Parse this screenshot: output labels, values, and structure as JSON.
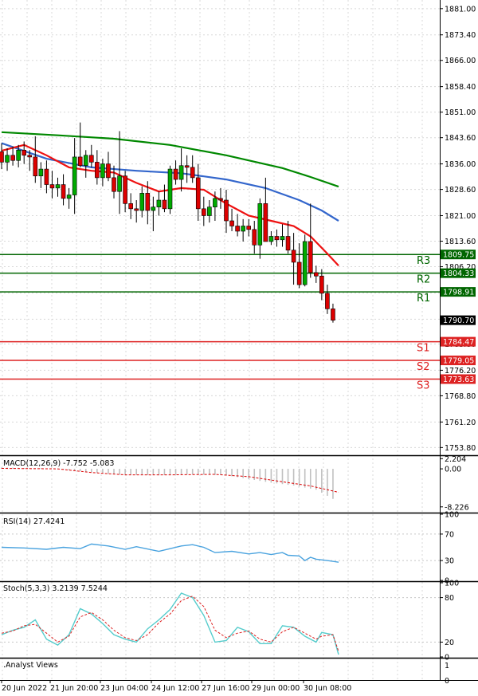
{
  "chart_data": [
    {
      "type": "candlestick",
      "name_on_chart": "",
      "y_ticks": [
        1881.0,
        1873.4,
        1866.0,
        1858.4,
        1851.0,
        1843.6,
        1836.0,
        1828.6,
        1821.0,
        1813.6,
        1806.2,
        1798.6,
        1791.0,
        1783.8,
        1776.2,
        1768.8,
        1761.2,
        1753.8
      ],
      "y_range": [
        1751.8,
        1883.5
      ],
      "x_labels": [
        "20 Jun 2022",
        "21 Jun 20:00",
        "23 Jun 04:00",
        "24 Jun 12:00",
        "27 Jun 16:00",
        "29 Jun 00:00",
        "30 Jun 08:00"
      ],
      "current_price": "1790.70",
      "colors": {
        "up": "#00aa00",
        "down": "#dd0000",
        "ma_slow": "#008800",
        "ma_mid": "#3366cc",
        "ma_fast": "#ee1111",
        "resistance": "#006600",
        "support": "#dd2222"
      },
      "candles": [
        {
          "o": 1839.5,
          "h": 1842.0,
          "l": 1834.5,
          "c": 1836.5
        },
        {
          "o": 1836.5,
          "h": 1840.5,
          "l": 1834.0,
          "c": 1838.5
        },
        {
          "o": 1838.5,
          "h": 1841.0,
          "l": 1835.5,
          "c": 1837.0
        },
        {
          "o": 1837.0,
          "h": 1841.5,
          "l": 1835.0,
          "c": 1840.0
        },
        {
          "o": 1840.0,
          "h": 1842.5,
          "l": 1836.0,
          "c": 1838.5
        },
        {
          "o": 1838.5,
          "h": 1840.0,
          "l": 1834.0,
          "c": 1838.0
        },
        {
          "o": 1838.0,
          "h": 1844.0,
          "l": 1830.5,
          "c": 1832.5
        },
        {
          "o": 1832.5,
          "h": 1836.5,
          "l": 1829.0,
          "c": 1834.5
        },
        {
          "o": 1834.5,
          "h": 1837.0,
          "l": 1827.5,
          "c": 1830.0
        },
        {
          "o": 1830.0,
          "h": 1834.0,
          "l": 1826.0,
          "c": 1829.0
        },
        {
          "o": 1829.0,
          "h": 1832.0,
          "l": 1826.5,
          "c": 1830.0
        },
        {
          "o": 1830.0,
          "h": 1833.0,
          "l": 1824.0,
          "c": 1826.0
        },
        {
          "o": 1826.0,
          "h": 1829.0,
          "l": 1823.0,
          "c": 1827.0
        },
        {
          "o": 1827.0,
          "h": 1843.5,
          "l": 1821.5,
          "c": 1838.0
        },
        {
          "o": 1838.0,
          "h": 1848.0,
          "l": 1835.0,
          "c": 1835.5
        },
        {
          "o": 1835.5,
          "h": 1840.0,
          "l": 1832.0,
          "c": 1838.5
        },
        {
          "o": 1838.5,
          "h": 1841.5,
          "l": 1835.0,
          "c": 1836.5
        },
        {
          "o": 1836.5,
          "h": 1840.0,
          "l": 1830.0,
          "c": 1832.0
        },
        {
          "o": 1832.0,
          "h": 1837.5,
          "l": 1829.5,
          "c": 1836.0
        },
        {
          "o": 1836.0,
          "h": 1839.5,
          "l": 1831.0,
          "c": 1832.0
        },
        {
          "o": 1832.0,
          "h": 1835.5,
          "l": 1826.0,
          "c": 1828.0
        },
        {
          "o": 1828.0,
          "h": 1845.5,
          "l": 1821.5,
          "c": 1832.5
        },
        {
          "o": 1832.5,
          "h": 1834.0,
          "l": 1822.0,
          "c": 1824.5
        },
        {
          "o": 1824.5,
          "h": 1827.5,
          "l": 1820.0,
          "c": 1823.0
        },
        {
          "o": 1823.0,
          "h": 1825.5,
          "l": 1819.0,
          "c": 1822.5
        },
        {
          "o": 1822.5,
          "h": 1829.5,
          "l": 1820.5,
          "c": 1827.5
        },
        {
          "o": 1827.5,
          "h": 1831.0,
          "l": 1818.5,
          "c": 1822.5
        },
        {
          "o": 1822.5,
          "h": 1826.5,
          "l": 1816.5,
          "c": 1823.5
        },
        {
          "o": 1823.5,
          "h": 1828.0,
          "l": 1821.0,
          "c": 1825.5
        },
        {
          "o": 1825.5,
          "h": 1830.0,
          "l": 1822.0,
          "c": 1823.0
        },
        {
          "o": 1823.0,
          "h": 1835.5,
          "l": 1821.5,
          "c": 1834.5
        },
        {
          "o": 1834.5,
          "h": 1837.0,
          "l": 1830.0,
          "c": 1831.5
        },
        {
          "o": 1831.5,
          "h": 1840.5,
          "l": 1828.0,
          "c": 1835.5
        },
        {
          "o": 1835.5,
          "h": 1838.5,
          "l": 1830.5,
          "c": 1835.0
        },
        {
          "o": 1835.0,
          "h": 1838.5,
          "l": 1830.5,
          "c": 1832.0
        },
        {
          "o": 1832.0,
          "h": 1836.0,
          "l": 1819.5,
          "c": 1823.0
        },
        {
          "o": 1823.0,
          "h": 1826.5,
          "l": 1818.0,
          "c": 1821.0
        },
        {
          "o": 1821.0,
          "h": 1825.5,
          "l": 1819.0,
          "c": 1823.5
        },
        {
          "o": 1823.5,
          "h": 1828.0,
          "l": 1819.5,
          "c": 1826.0
        },
        {
          "o": 1826.0,
          "h": 1829.0,
          "l": 1823.0,
          "c": 1825.5
        },
        {
          "o": 1825.5,
          "h": 1828.5,
          "l": 1816.0,
          "c": 1819.5
        },
        {
          "o": 1819.5,
          "h": 1823.0,
          "l": 1816.5,
          "c": 1818.0
        },
        {
          "o": 1818.0,
          "h": 1821.5,
          "l": 1815.0,
          "c": 1816.5
        },
        {
          "o": 1816.5,
          "h": 1820.0,
          "l": 1813.5,
          "c": 1818.0
        },
        {
          "o": 1818.0,
          "h": 1820.0,
          "l": 1815.0,
          "c": 1817.0
        },
        {
          "o": 1817.0,
          "h": 1819.5,
          "l": 1810.0,
          "c": 1812.5
        },
        {
          "o": 1812.5,
          "h": 1826.0,
          "l": 1808.5,
          "c": 1824.5
        },
        {
          "o": 1824.5,
          "h": 1832.0,
          "l": 1814.0,
          "c": 1813.5
        },
        {
          "o": 1813.5,
          "h": 1816.5,
          "l": 1812.5,
          "c": 1815.0
        },
        {
          "o": 1815.0,
          "h": 1817.0,
          "l": 1812.0,
          "c": 1814.0
        },
        {
          "o": 1814.0,
          "h": 1818.5,
          "l": 1812.0,
          "c": 1815.0
        },
        {
          "o": 1815.0,
          "h": 1819.5,
          "l": 1810.0,
          "c": 1811.0
        },
        {
          "o": 1811.0,
          "h": 1816.0,
          "l": 1801.0,
          "c": 1807.5
        },
        {
          "o": 1807.5,
          "h": 1813.0,
          "l": 1800.0,
          "c": 1801.0
        },
        {
          "o": 1801.0,
          "h": 1815.5,
          "l": 1800.5,
          "c": 1813.5
        },
        {
          "o": 1813.5,
          "h": 1824.5,
          "l": 1803.0,
          "c": 1804.5
        },
        {
          "o": 1804.5,
          "h": 1806.5,
          "l": 1801.5,
          "c": 1803.5
        },
        {
          "o": 1803.5,
          "h": 1805.5,
          "l": 1796.5,
          "c": 1798.5
        },
        {
          "o": 1798.5,
          "h": 1801.0,
          "l": 1792.5,
          "c": 1794.0
        },
        {
          "o": 1794.0,
          "h": 1795.5,
          "l": 1790.0,
          "c": 1790.7
        }
      ],
      "ma_slow": [
        [
          0,
          1845.2
        ],
        [
          10,
          1844.3
        ],
        [
          20,
          1843.3
        ],
        [
          30,
          1841.5
        ],
        [
          40,
          1838.5
        ],
        [
          50,
          1834.8
        ],
        [
          55,
          1832.2
        ],
        [
          60,
          1829.4
        ]
      ],
      "ma_mid": [
        [
          0,
          1842.0
        ],
        [
          8,
          1837.5
        ],
        [
          16,
          1835.0
        ],
        [
          24,
          1834.0
        ],
        [
          32,
          1833.3
        ],
        [
          40,
          1831.5
        ],
        [
          47,
          1829.0
        ],
        [
          53,
          1825.5
        ],
        [
          57,
          1822.5
        ],
        [
          60,
          1819.5
        ]
      ],
      "ma_fast": [
        [
          0,
          1839.8
        ],
        [
          4,
          1841.5
        ],
        [
          8,
          1838.5
        ],
        [
          12,
          1835.0
        ],
        [
          16,
          1834.0
        ],
        [
          20,
          1833.5
        ],
        [
          24,
          1830.5
        ],
        [
          28,
          1828.0
        ],
        [
          32,
          1829.0
        ],
        [
          36,
          1828.5
        ],
        [
          40,
          1824.5
        ],
        [
          44,
          1821.0
        ],
        [
          48,
          1819.5
        ],
        [
          52,
          1818.0
        ],
        [
          55,
          1815.0
        ],
        [
          58,
          1810.0
        ],
        [
          60,
          1806.5
        ]
      ],
      "levels": [
        {
          "name": "R3",
          "value": 1809.75,
          "value_label": "1809.75",
          "kind": "resistance"
        },
        {
          "name": "R2",
          "value": 1804.33,
          "value_label": "1804.33",
          "kind": "resistance"
        },
        {
          "name": "R1",
          "value": 1798.91,
          "value_label": "1798.91",
          "kind": "resistance"
        },
        {
          "name": "S1",
          "value": 1784.47,
          "value_label": "1784.47",
          "kind": "support"
        },
        {
          "name": "S2",
          "value": 1779.05,
          "value_label": "1779.05",
          "kind": "support"
        },
        {
          "name": "S3",
          "value": 1773.63,
          "value_label": "1773.63",
          "kind": "support"
        }
      ]
    },
    {
      "type": "histogram",
      "name_on_chart": "MACD(12,26,9) -7.752 -5.083",
      "y_ticks": [
        "2.204",
        "0.00",
        "-8.226"
      ],
      "y_range": [
        -9.3,
        2.6
      ],
      "hist_color": "#c0c0c0",
      "signal_color": "#dd0000",
      "histogram": [
        [
          0,
          0.3
        ],
        [
          8,
          0.1
        ],
        [
          14,
          -0.5
        ],
        [
          20,
          -1.2
        ],
        [
          28,
          -1.4
        ],
        [
          34,
          -1.2
        ],
        [
          40,
          -1.4
        ],
        [
          44,
          -2.2
        ],
        [
          48,
          -3.0
        ],
        [
          52,
          -3.6
        ],
        [
          56,
          -4.5
        ],
        [
          59,
          -6.5
        ],
        [
          60,
          -7.752
        ]
      ],
      "signal": [
        [
          0,
          0.1
        ],
        [
          10,
          0.0
        ],
        [
          16,
          -0.8
        ],
        [
          22,
          -1.3
        ],
        [
          30,
          -1.3
        ],
        [
          38,
          -1.2
        ],
        [
          44,
          -1.7
        ],
        [
          50,
          -2.8
        ],
        [
          55,
          -3.7
        ],
        [
          60,
          -5.083
        ]
      ]
    },
    {
      "type": "line",
      "name_on_chart": "RSI(14) 27.4241",
      "y_ticks": [
        "100",
        "70",
        "30",
        "0"
      ],
      "y_range": [
        0,
        100
      ],
      "line_color": "#4aa3df",
      "values": [
        [
          0,
          50
        ],
        [
          4,
          49
        ],
        [
          8,
          47
        ],
        [
          11,
          50
        ],
        [
          14,
          48
        ],
        [
          16,
          55
        ],
        [
          19,
          52
        ],
        [
          22,
          47
        ],
        [
          24,
          51
        ],
        [
          28,
          44
        ],
        [
          32,
          52
        ],
        [
          34,
          54
        ],
        [
          36,
          50
        ],
        [
          38,
          42
        ],
        [
          41,
          44
        ],
        [
          44,
          40
        ],
        [
          46,
          42
        ],
        [
          48,
          39
        ],
        [
          50,
          42
        ],
        [
          51,
          38
        ],
        [
          53,
          37
        ],
        [
          54,
          30
        ],
        [
          55,
          35
        ],
        [
          56,
          32
        ],
        [
          58,
          30
        ],
        [
          60,
          27.4241
        ]
      ]
    },
    {
      "type": "line",
      "name_on_chart": "Stoch(5,3,3) 3.2139 7.5244",
      "y_ticks": [
        "100",
        "80",
        "20",
        "0"
      ],
      "y_range": [
        0,
        100
      ],
      "main_color": "#55cccc",
      "signal_color": "#dd2222",
      "main": [
        [
          0,
          30
        ],
        [
          2,
          36
        ],
        [
          4,
          40
        ],
        [
          6,
          50
        ],
        [
          8,
          24
        ],
        [
          10,
          16
        ],
        [
          12,
          30
        ],
        [
          14,
          65
        ],
        [
          16,
          58
        ],
        [
          18,
          45
        ],
        [
          20,
          30
        ],
        [
          22,
          24
        ],
        [
          24,
          20
        ],
        [
          26,
          38
        ],
        [
          28,
          50
        ],
        [
          30,
          64
        ],
        [
          32,
          86
        ],
        [
          34,
          80
        ],
        [
          36,
          56
        ],
        [
          38,
          20
        ],
        [
          40,
          22
        ],
        [
          42,
          40
        ],
        [
          44,
          34
        ],
        [
          46,
          18
        ],
        [
          48,
          18
        ],
        [
          50,
          42
        ],
        [
          52,
          40
        ],
        [
          54,
          28
        ],
        [
          56,
          20
        ],
        [
          57,
          33
        ],
        [
          59,
          30
        ],
        [
          60,
          3.2139
        ]
      ],
      "signal": [
        [
          0,
          32
        ],
        [
          2,
          35
        ],
        [
          4,
          42
        ],
        [
          6,
          44
        ],
        [
          8,
          32
        ],
        [
          10,
          20
        ],
        [
          12,
          28
        ],
        [
          14,
          54
        ],
        [
          16,
          60
        ],
        [
          18,
          50
        ],
        [
          20,
          36
        ],
        [
          22,
          26
        ],
        [
          24,
          22
        ],
        [
          26,
          30
        ],
        [
          28,
          46
        ],
        [
          30,
          58
        ],
        [
          32,
          76
        ],
        [
          34,
          82
        ],
        [
          36,
          68
        ],
        [
          38,
          36
        ],
        [
          40,
          26
        ],
        [
          42,
          32
        ],
        [
          44,
          35
        ],
        [
          46,
          24
        ],
        [
          48,
          20
        ],
        [
          50,
          34
        ],
        [
          52,
          40
        ],
        [
          54,
          32
        ],
        [
          56,
          24
        ],
        [
          57,
          28
        ],
        [
          59,
          30
        ],
        [
          60,
          7.5244
        ]
      ]
    },
    {
      "type": "panel",
      "name_on_chart": ".Analyst Views",
      "y_ticks": [
        "1",
        "0"
      ]
    }
  ]
}
